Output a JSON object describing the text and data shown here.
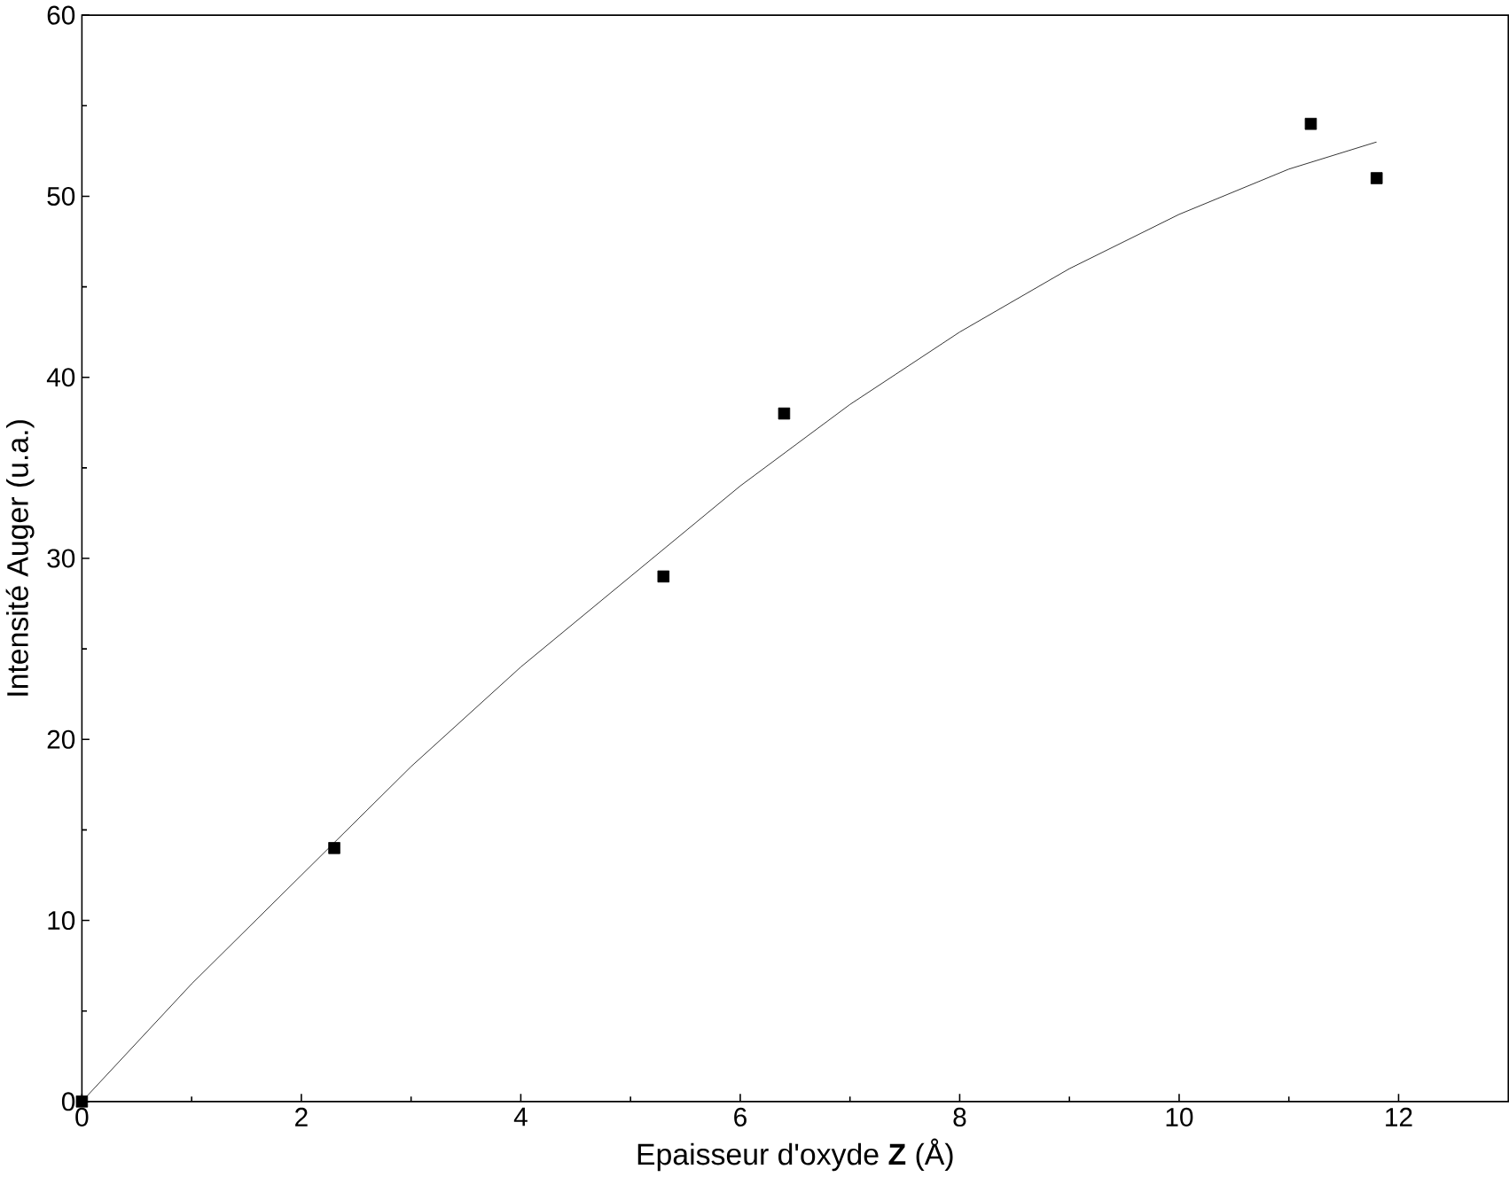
{
  "chart_data": {
    "type": "scatter",
    "xlabel": "Epaisseur d'oxyde **Z**  (Å)",
    "ylabel": "Intensité Auger (u.a.)",
    "xlim": [
      0,
      13
    ],
    "ylim": [
      0,
      60
    ],
    "xticks": [
      0,
      2,
      4,
      6,
      8,
      10,
      12
    ],
    "yticks": [
      0,
      10,
      20,
      30,
      40,
      50,
      60
    ],
    "series": [
      {
        "marker": "square",
        "color": "#000000",
        "x": [
          0,
          2.3,
          5.3,
          6.4,
          11.2,
          11.8
        ],
        "values": [
          0,
          14,
          29,
          38,
          54,
          51
        ]
      },
      {
        "type": "line",
        "marker": "none",
        "line_style": "solid",
        "color": "#000000",
        "x": [
          0,
          1,
          2,
          3,
          4,
          5,
          6,
          7,
          8,
          9,
          10,
          11,
          11.8
        ],
        "values": [
          0,
          6.5,
          12.5,
          18.5,
          24,
          29,
          34,
          38.5,
          42.5,
          46,
          49,
          51.5,
          53
        ]
      }
    ]
  }
}
